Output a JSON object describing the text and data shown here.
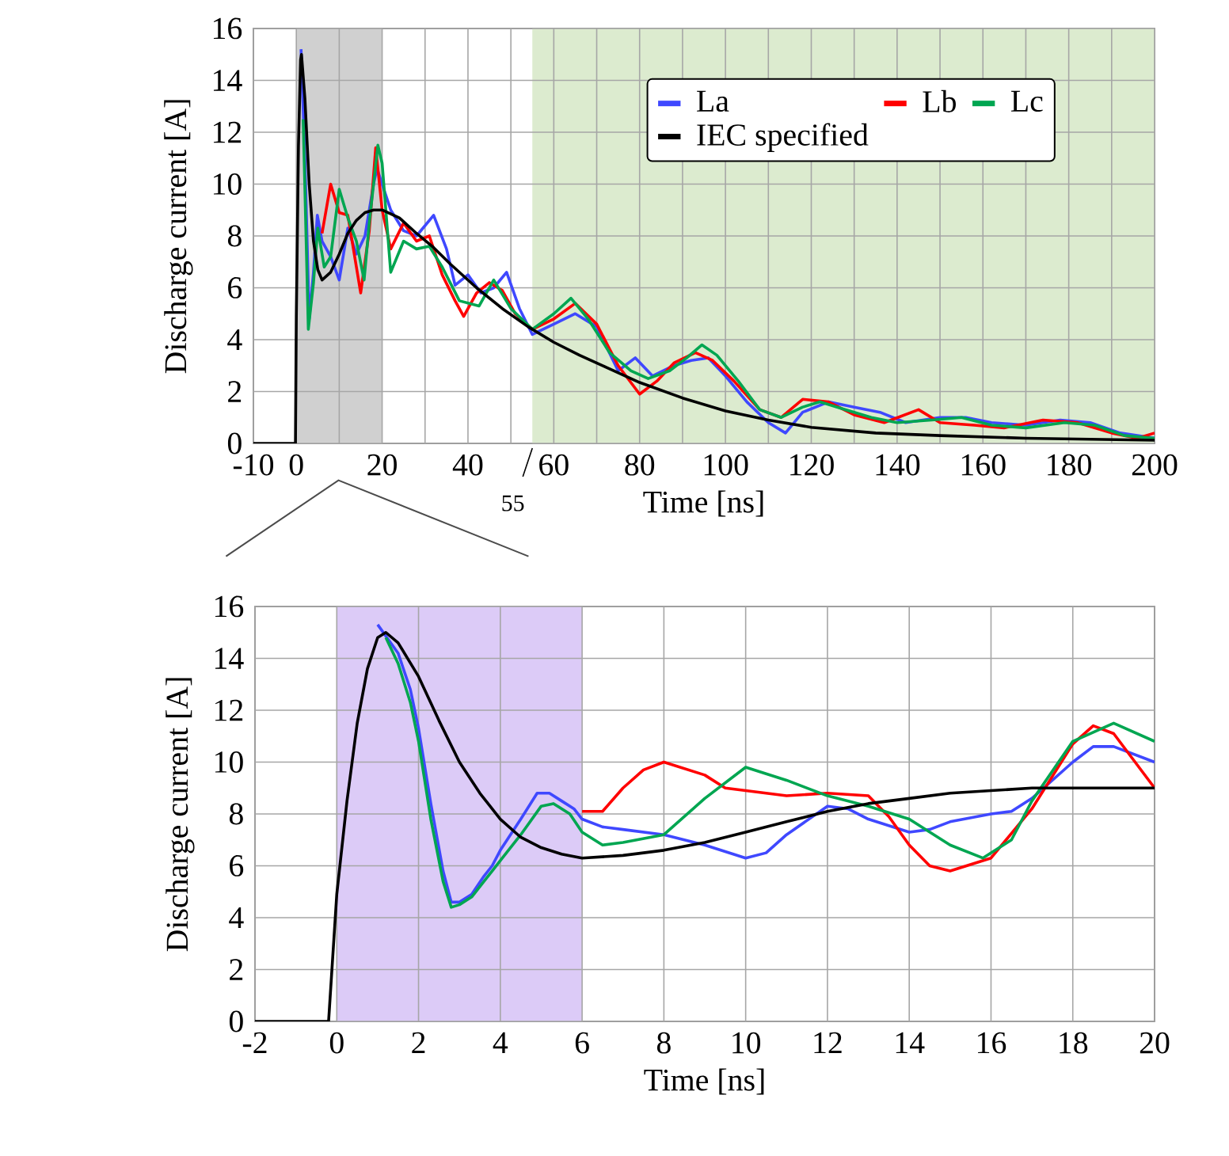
{
  "chart_data": [
    {
      "type": "line",
      "xlabel": "Time [ns]",
      "ylabel": "Discharge current [A]",
      "xlim": [
        -10,
        200
      ],
      "ylim": [
        0,
        16
      ],
      "xticks": [
        -10,
        0,
        {
          "value": 10,
          "label": null
        },
        20,
        {
          "value": 30,
          "label": null
        },
        40,
        {
          "value": 50,
          "label": null
        },
        60,
        {
          "value": 70,
          "label": null
        },
        80,
        {
          "value": 90,
          "label": null
        },
        100,
        {
          "value": 110,
          "label": null
        },
        120,
        {
          "value": 130,
          "label": null
        },
        140,
        {
          "value": 150,
          "label": null
        },
        160,
        {
          "value": 170,
          "label": null
        },
        180,
        {
          "value": 190,
          "label": null
        },
        200
      ],
      "yticks": [
        0,
        2,
        4,
        6,
        8,
        10,
        12,
        14,
        16
      ],
      "grid": true,
      "legend": "top right",
      "marker": "none",
      "line_style": "solid",
      "bands": [
        {
          "axis": "x",
          "from": 0,
          "to": 20,
          "color": "#d0d0d0"
        },
        {
          "axis": "x",
          "from": 55,
          "to": 200,
          "color": "#dcebcf"
        }
      ],
      "annotations": [
        {
          "text": "55",
          "x": 55,
          "y": 0
        }
      ],
      "series": [
        {
          "name": "La",
          "color": "#3f48ff",
          "x": [
            1.1,
            2.0,
            3.0,
            4.0,
            4.9,
            6.0,
            8,
            10,
            12,
            14,
            16,
            18,
            18.8,
            22,
            25,
            28,
            32,
            35,
            37,
            40,
            43,
            46,
            49,
            52,
            55,
            60,
            65,
            70,
            75,
            79,
            83,
            88,
            92,
            96,
            100,
            105,
            110,
            114,
            118,
            124,
            130,
            136,
            142,
            150,
            156,
            162,
            170,
            178,
            185,
            192,
            200
          ],
          "values": [
            15.2,
            11,
            4.8,
            6.6,
            8.8,
            7.8,
            7.2,
            6.3,
            8.3,
            7.3,
            8.0,
            10.0,
            10.6,
            9.0,
            8.2,
            8.0,
            8.8,
            7.5,
            6.1,
            6.5,
            5.8,
            6.0,
            6.6,
            5.2,
            4.2,
            4.6,
            5.0,
            4.5,
            2.8,
            3.3,
            2.6,
            3.0,
            3.2,
            3.3,
            2.6,
            1.6,
            0.8,
            0.4,
            1.2,
            1.6,
            1.4,
            1.2,
            0.8,
            1.0,
            1.0,
            0.8,
            0.7,
            0.9,
            0.8,
            0.4,
            0.2
          ]
        },
        {
          "name": "Lb",
          "color": "#ff0000",
          "x": [
            6.0,
            8,
            10,
            12,
            14,
            15,
            17,
            18.5,
            20,
            22,
            25,
            28,
            31,
            34,
            37,
            39,
            42,
            45,
            48,
            51,
            55,
            60,
            65,
            70,
            75,
            80,
            84,
            88,
            93,
            97,
            102,
            108,
            113,
            118,
            124,
            130,
            137,
            145,
            150,
            158,
            165,
            174,
            182,
            190,
            196,
            200
          ],
          "values": [
            8.1,
            10.0,
            8.9,
            8.8,
            6.8,
            5.8,
            8.2,
            11.4,
            9.0,
            7.5,
            8.5,
            7.8,
            8.0,
            6.5,
            5.5,
            4.9,
            5.8,
            6.2,
            5.9,
            5.0,
            4.4,
            4.8,
            5.4,
            4.6,
            3.0,
            1.9,
            2.4,
            3.1,
            3.5,
            3.2,
            2.4,
            1.3,
            1.0,
            1.7,
            1.6,
            1.1,
            0.8,
            1.3,
            0.8,
            0.7,
            0.6,
            0.9,
            0.8,
            0.4,
            0.2,
            0.4
          ]
        },
        {
          "name": "Lc",
          "color": "#00a651",
          "x": [
            1.6,
            2.8,
            4.0,
            5.0,
            6.5,
            8,
            10,
            12,
            14,
            15.8,
            17,
            19,
            20,
            22,
            25,
            28,
            31,
            34,
            38,
            42.6,
            46,
            50,
            55,
            60,
            64,
            68,
            73,
            78,
            82,
            87,
            91,
            94.5,
            98,
            103,
            108,
            113,
            118,
            122,
            128,
            134,
            140,
            148,
            155,
            162,
            170,
            179,
            186,
            193,
            200
          ],
          "values": [
            12.5,
            4.4,
            6.2,
            8.3,
            6.8,
            7.2,
            9.8,
            8.7,
            7.8,
            6.3,
            8.5,
            11.5,
            10.8,
            6.6,
            7.8,
            7.5,
            7.6,
            6.8,
            5.5,
            5.3,
            6.3,
            5.2,
            4.4,
            5.0,
            5.6,
            4.8,
            3.5,
            2.8,
            2.5,
            2.8,
            3.3,
            3.8,
            3.4,
            2.4,
            1.3,
            1.0,
            1.4,
            1.6,
            1.3,
            1.0,
            0.8,
            0.9,
            1.0,
            0.7,
            0.6,
            0.8,
            0.7,
            0.3,
            0.2
          ]
        },
        {
          "name": "IEC specified",
          "color": "#000000",
          "x": [
            -10,
            -0.2,
            0,
            0.5,
            1.0,
            1.2,
            2,
            3,
            4,
            5,
            6,
            8,
            10,
            12,
            14,
            16,
            18,
            20,
            24,
            28,
            32,
            36,
            42,
            48,
            54,
            60,
            66,
            72,
            80,
            90,
            100,
            110,
            120,
            135,
            150,
            170,
            200
          ],
          "values": [
            0,
            0,
            4.9,
            11.5,
            14.8,
            15.0,
            13.3,
            10.0,
            7.8,
            6.7,
            6.3,
            6.6,
            7.3,
            8.1,
            8.6,
            8.9,
            9.0,
            9.0,
            8.7,
            8.1,
            7.55,
            6.9,
            6.0,
            5.2,
            4.5,
            3.9,
            3.4,
            2.95,
            2.35,
            1.75,
            1.25,
            0.9,
            0.62,
            0.4,
            0.3,
            0.2,
            0.12
          ]
        }
      ]
    },
    {
      "type": "line",
      "xlabel": "Time [ns]",
      "ylabel": "Discharge current [A]",
      "xlim": [
        -2,
        20
      ],
      "ylim": [
        0,
        16
      ],
      "xticks": [
        -2,
        0,
        2,
        4,
        6,
        8,
        10,
        12,
        14,
        16,
        18,
        20
      ],
      "yticks": [
        0,
        2,
        4,
        6,
        8,
        10,
        12,
        14,
        16
      ],
      "grid": true,
      "marker": "none",
      "line_style": "solid",
      "bands": [
        {
          "axis": "x",
          "from": 0,
          "to": 6,
          "color": "#dccbf7"
        }
      ],
      "series": [
        {
          "color": "#3f48ff",
          "x": [
            1.0,
            1.5,
            1.8,
            2.0,
            2.3,
            2.6,
            2.8,
            3.0,
            3.3,
            3.6,
            3.8,
            4.0,
            4.5,
            4.9,
            5.2,
            5.5,
            5.8,
            6.0,
            6.5,
            7,
            8,
            9,
            10,
            10.5,
            11,
            12,
            12.5,
            13,
            14,
            14.5,
            15,
            16,
            16.5,
            17,
            18,
            18.5,
            19,
            20
          ],
          "values": [
            15.3,
            14.2,
            12.8,
            11.3,
            8.4,
            5.8,
            4.6,
            4.6,
            4.9,
            5.6,
            6.0,
            6.6,
            7.8,
            8.8,
            8.8,
            8.5,
            8.2,
            7.8,
            7.5,
            7.4,
            7.2,
            6.8,
            6.3,
            6.5,
            7.2,
            8.3,
            8.2,
            7.8,
            7.3,
            7.4,
            7.7,
            8.0,
            8.1,
            8.6,
            10.0,
            10.6,
            10.6,
            10.0
          ]
        },
        {
          "color": "#ff0000",
          "x": [
            6.0,
            6.5,
            7,
            7.5,
            8,
            9,
            9.5,
            10,
            11,
            12,
            13,
            13.5,
            14,
            14.5,
            15,
            16,
            17,
            18,
            18.5,
            19,
            20
          ],
          "values": [
            8.1,
            8.1,
            9.0,
            9.7,
            10.0,
            9.5,
            9.0,
            8.9,
            8.7,
            8.8,
            8.7,
            7.9,
            6.8,
            6.0,
            5.8,
            6.3,
            8.2,
            10.7,
            11.4,
            11.1,
            9.0
          ]
        },
        {
          "color": "#00a651",
          "x": [
            1.2,
            1.5,
            1.8,
            2.0,
            2.3,
            2.6,
            2.8,
            3.0,
            3.3,
            3.6,
            3.8,
            4.0,
            4.5,
            5.0,
            5.3,
            5.7,
            6.0,
            6.5,
            7,
            8,
            9,
            10,
            11,
            12,
            13,
            14,
            15,
            15.8,
            16.5,
            17,
            18,
            19,
            20
          ],
          "values": [
            14.8,
            13.8,
            12.3,
            10.8,
            7.8,
            5.4,
            4.4,
            4.5,
            4.8,
            5.4,
            5.8,
            6.2,
            7.2,
            8.3,
            8.4,
            8.0,
            7.3,
            6.8,
            6.9,
            7.2,
            8.6,
            9.8,
            9.3,
            8.7,
            8.3,
            7.8,
            6.8,
            6.3,
            7.0,
            8.5,
            10.8,
            11.5,
            10.8
          ]
        },
        {
          "color": "#000000",
          "x": [
            -2,
            -0.2,
            0,
            0.25,
            0.5,
            0.75,
            1.0,
            1.2,
            1.5,
            2,
            2.5,
            3,
            3.5,
            4,
            4.5,
            5,
            5.5,
            6,
            7,
            8,
            9,
            10,
            11,
            12,
            13,
            14,
            15,
            16,
            17,
            18,
            19,
            20
          ],
          "values": [
            0,
            0,
            4.9,
            8.5,
            11.5,
            13.6,
            14.8,
            15.0,
            14.6,
            13.3,
            11.6,
            10.0,
            8.8,
            7.8,
            7.1,
            6.7,
            6.45,
            6.3,
            6.4,
            6.6,
            6.9,
            7.3,
            7.7,
            8.1,
            8.4,
            8.6,
            8.8,
            8.9,
            9.0,
            9.0,
            9.0,
            9.0
          ]
        }
      ]
    }
  ]
}
